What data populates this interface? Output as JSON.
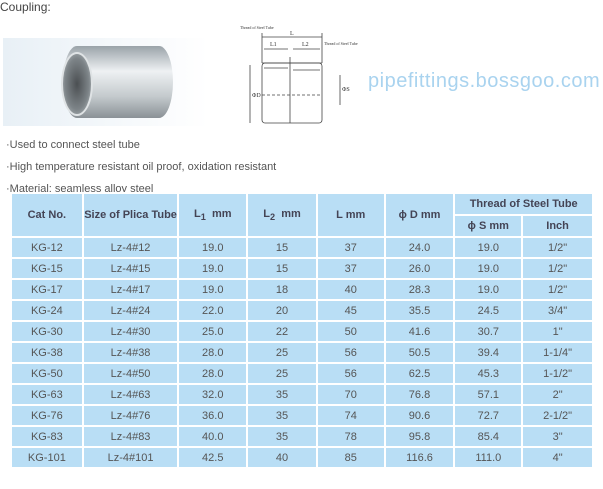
{
  "title": "Coupling:",
  "diagram": {
    "labels": [
      "Thread of Steel Tube",
      "Thread of Steel Tube",
      "L",
      "L1",
      "L2",
      "ΦD",
      "ΦS"
    ]
  },
  "bullets": [
    "·Used to connect steel tube",
    "·High temperature resistant oil proof, oxidation resistant",
    "·Material: seamless alloy steel"
  ],
  "table": {
    "headers": {
      "cat": "Cat No.",
      "size": "Size of Plica Tube",
      "l1": "L",
      "l1sub": "1",
      "l1unit": "mm",
      "l2": "L",
      "l2sub": "2",
      "l2unit": "mm",
      "l": "L  mm",
      "d": "ϕ D  mm",
      "thread": "Thread of Steel Tube",
      "s": "ϕ S mm",
      "inch": "Inch"
    },
    "rows": [
      [
        "KG-12",
        "Lz-4#12",
        "19.0",
        "15",
        "37",
        "24.0",
        "19.0",
        "1/2\""
      ],
      [
        "KG-15",
        "Lz-4#15",
        "19.0",
        "15",
        "37",
        "26.0",
        "19.0",
        "1/2\""
      ],
      [
        "KG-17",
        "Lz-4#17",
        "19.0",
        "18",
        "40",
        "28.3",
        "19.0",
        "1/2\""
      ],
      [
        "KG-24",
        "Lz-4#24",
        "22.0",
        "20",
        "45",
        "35.5",
        "24.5",
        "3/4\""
      ],
      [
        "KG-30",
        "Lz-4#30",
        "25.0",
        "22",
        "50",
        "41.6",
        "30.7",
        "1\""
      ],
      [
        "KG-38",
        "Lz-4#38",
        "28.0",
        "25",
        "56",
        "50.5",
        "39.4",
        "1-1/4\""
      ],
      [
        "KG-50",
        "Lz-4#50",
        "28.0",
        "25",
        "56",
        "62.5",
        "45.3",
        "1-1/2\""
      ],
      [
        "KG-63",
        "Lz-4#63",
        "32.0",
        "35",
        "70",
        "76.8",
        "57.1",
        "2\""
      ],
      [
        "KG-76",
        "Lz-4#76",
        "36.0",
        "35",
        "74",
        "90.6",
        "72.7",
        "2-1/2\""
      ],
      [
        "KG-83",
        "Lz-4#83",
        "40.0",
        "35",
        "78",
        "95.8",
        "85.4",
        "3\""
      ],
      [
        "KG-101",
        "Lz-4#101",
        "42.5",
        "40",
        "85",
        "116.6",
        "111.0",
        "4\""
      ]
    ]
  },
  "watermark": "pipefittings.bossgoo.com"
}
